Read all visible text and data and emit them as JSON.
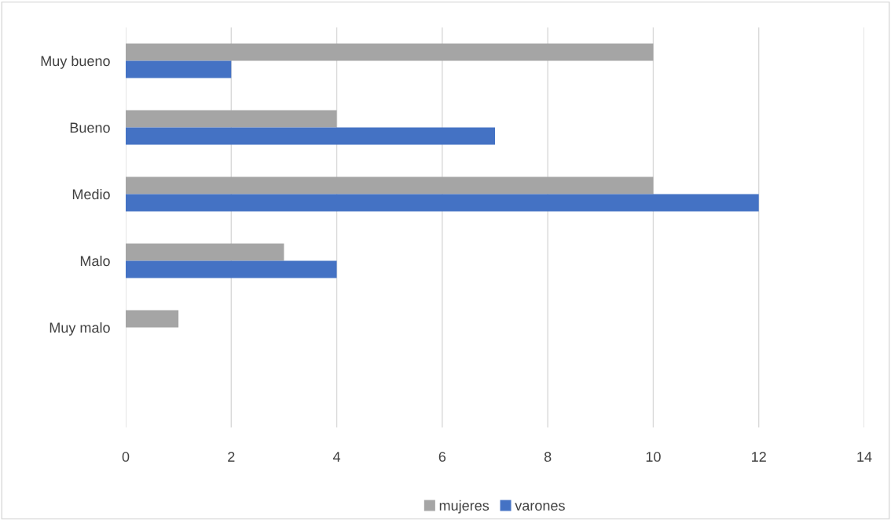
{
  "chart_data": {
    "type": "bar",
    "orientation": "horizontal",
    "categories": [
      "Muy bueno",
      "Bueno",
      "Medio",
      "Malo",
      "Muy malo",
      null
    ],
    "series": [
      {
        "name": "mujeres",
        "color": "#a5a5a5",
        "values": [
          10,
          4,
          10,
          3,
          1,
          null
        ]
      },
      {
        "name": "varones",
        "color": "#4472c4",
        "values": [
          2,
          7,
          12,
          4,
          0,
          null
        ]
      }
    ],
    "xlim": [
      0,
      14
    ],
    "xticks": [
      0,
      2,
      4,
      6,
      8,
      10,
      12,
      14
    ],
    "grid": "x",
    "legend": "bottom"
  }
}
